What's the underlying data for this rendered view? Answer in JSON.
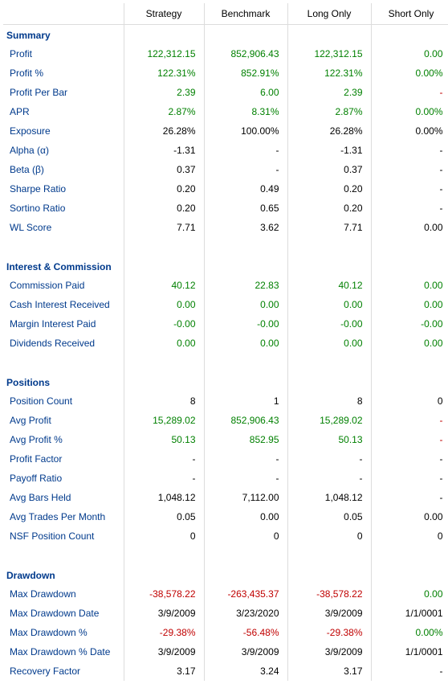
{
  "columns": [
    "",
    "Strategy",
    "Benchmark",
    "Long Only",
    "Short Only"
  ],
  "colors": {
    "header_label": "#003a8c",
    "positive": "#008000",
    "negative": "#c00000",
    "neutral": "#000000",
    "border": "#dcdcdc",
    "background": "#ffffff"
  },
  "sections": [
    {
      "title": "Summary",
      "rows": [
        {
          "label": "Profit",
          "cells": [
            {
              "v": "122,312.15",
              "c": "green"
            },
            {
              "v": "852,906.43",
              "c": "green"
            },
            {
              "v": "122,312.15",
              "c": "green"
            },
            {
              "v": "0.00",
              "c": "green"
            }
          ]
        },
        {
          "label": "Profit %",
          "cells": [
            {
              "v": "122.31%",
              "c": "green"
            },
            {
              "v": "852.91%",
              "c": "green"
            },
            {
              "v": "122.31%",
              "c": "green"
            },
            {
              "v": "0.00%",
              "c": "green"
            }
          ]
        },
        {
          "label": "Profit Per Bar",
          "cells": [
            {
              "v": "2.39",
              "c": "green"
            },
            {
              "v": "6.00",
              "c": "green"
            },
            {
              "v": "2.39",
              "c": "green"
            },
            {
              "v": "-",
              "c": "red"
            }
          ]
        },
        {
          "label": "APR",
          "cells": [
            {
              "v": "2.87%",
              "c": "green"
            },
            {
              "v": "8.31%",
              "c": "green"
            },
            {
              "v": "2.87%",
              "c": "green"
            },
            {
              "v": "0.00%",
              "c": "green"
            }
          ]
        },
        {
          "label": "Exposure",
          "cells": [
            {
              "v": "26.28%",
              "c": "black"
            },
            {
              "v": "100.00%",
              "c": "black"
            },
            {
              "v": "26.28%",
              "c": "black"
            },
            {
              "v": "0.00%",
              "c": "black"
            }
          ]
        },
        {
          "label": "Alpha (α)",
          "cells": [
            {
              "v": "-1.31",
              "c": "black"
            },
            {
              "v": "-",
              "c": "black"
            },
            {
              "v": "-1.31",
              "c": "black"
            },
            {
              "v": "-",
              "c": "black"
            }
          ]
        },
        {
          "label": "Beta (β)",
          "cells": [
            {
              "v": "0.37",
              "c": "black"
            },
            {
              "v": "-",
              "c": "black"
            },
            {
              "v": "0.37",
              "c": "black"
            },
            {
              "v": "-",
              "c": "black"
            }
          ]
        },
        {
          "label": "Sharpe Ratio",
          "cells": [
            {
              "v": "0.20",
              "c": "black"
            },
            {
              "v": "0.49",
              "c": "black"
            },
            {
              "v": "0.20",
              "c": "black"
            },
            {
              "v": "-",
              "c": "black"
            }
          ]
        },
        {
          "label": "Sortino Ratio",
          "cells": [
            {
              "v": "0.20",
              "c": "black"
            },
            {
              "v": "0.65",
              "c": "black"
            },
            {
              "v": "0.20",
              "c": "black"
            },
            {
              "v": "-",
              "c": "black"
            }
          ]
        },
        {
          "label": "WL Score",
          "cells": [
            {
              "v": "7.71",
              "c": "black"
            },
            {
              "v": "3.62",
              "c": "black"
            },
            {
              "v": "7.71",
              "c": "black"
            },
            {
              "v": "0.00",
              "c": "black"
            }
          ]
        }
      ]
    },
    {
      "title": "Interest & Commission",
      "rows": [
        {
          "label": "Commission Paid",
          "cells": [
            {
              "v": "40.12",
              "c": "green"
            },
            {
              "v": "22.83",
              "c": "green"
            },
            {
              "v": "40.12",
              "c": "green"
            },
            {
              "v": "0.00",
              "c": "green"
            }
          ]
        },
        {
          "label": "Cash Interest Received",
          "cells": [
            {
              "v": "0.00",
              "c": "green"
            },
            {
              "v": "0.00",
              "c": "green"
            },
            {
              "v": "0.00",
              "c": "green"
            },
            {
              "v": "0.00",
              "c": "green"
            }
          ]
        },
        {
          "label": "Margin Interest Paid",
          "cells": [
            {
              "v": "-0.00",
              "c": "green"
            },
            {
              "v": "-0.00",
              "c": "green"
            },
            {
              "v": "-0.00",
              "c": "green"
            },
            {
              "v": "-0.00",
              "c": "green"
            }
          ]
        },
        {
          "label": "Dividends Received",
          "cells": [
            {
              "v": "0.00",
              "c": "green"
            },
            {
              "v": "0.00",
              "c": "green"
            },
            {
              "v": "0.00",
              "c": "green"
            },
            {
              "v": "0.00",
              "c": "green"
            }
          ]
        }
      ]
    },
    {
      "title": "Positions",
      "rows": [
        {
          "label": "Position Count",
          "cells": [
            {
              "v": "8",
              "c": "black"
            },
            {
              "v": "1",
              "c": "black"
            },
            {
              "v": "8",
              "c": "black"
            },
            {
              "v": "0",
              "c": "black"
            }
          ]
        },
        {
          "label": "Avg Profit",
          "cells": [
            {
              "v": "15,289.02",
              "c": "green"
            },
            {
              "v": "852,906.43",
              "c": "green"
            },
            {
              "v": "15,289.02",
              "c": "green"
            },
            {
              "v": "-",
              "c": "red"
            }
          ]
        },
        {
          "label": "Avg Profit %",
          "cells": [
            {
              "v": "50.13",
              "c": "green"
            },
            {
              "v": "852.95",
              "c": "green"
            },
            {
              "v": "50.13",
              "c": "green"
            },
            {
              "v": "-",
              "c": "red"
            }
          ]
        },
        {
          "label": "Profit Factor",
          "cells": [
            {
              "v": "-",
              "c": "black"
            },
            {
              "v": "-",
              "c": "black"
            },
            {
              "v": "-",
              "c": "black"
            },
            {
              "v": "-",
              "c": "black"
            }
          ]
        },
        {
          "label": "Payoff Ratio",
          "cells": [
            {
              "v": "-",
              "c": "black"
            },
            {
              "v": "-",
              "c": "black"
            },
            {
              "v": "-",
              "c": "black"
            },
            {
              "v": "-",
              "c": "black"
            }
          ]
        },
        {
          "label": "Avg Bars Held",
          "cells": [
            {
              "v": "1,048.12",
              "c": "black"
            },
            {
              "v": "7,112.00",
              "c": "black"
            },
            {
              "v": "1,048.12",
              "c": "black"
            },
            {
              "v": "-",
              "c": "black"
            }
          ]
        },
        {
          "label": "Avg Trades Per Month",
          "cells": [
            {
              "v": "0.05",
              "c": "black"
            },
            {
              "v": "0.00",
              "c": "black"
            },
            {
              "v": "0.05",
              "c": "black"
            },
            {
              "v": "0.00",
              "c": "black"
            }
          ]
        },
        {
          "label": "NSF Position Count",
          "cells": [
            {
              "v": "0",
              "c": "black"
            },
            {
              "v": "0",
              "c": "black"
            },
            {
              "v": "0",
              "c": "black"
            },
            {
              "v": "0",
              "c": "black"
            }
          ]
        }
      ]
    },
    {
      "title": "Drawdown",
      "rows": [
        {
          "label": "Max Drawdown",
          "cells": [
            {
              "v": "-38,578.22",
              "c": "red"
            },
            {
              "v": "-263,435.37",
              "c": "red"
            },
            {
              "v": "-38,578.22",
              "c": "red"
            },
            {
              "v": "0.00",
              "c": "green"
            }
          ]
        },
        {
          "label": "Max Drawdown Date",
          "cells": [
            {
              "v": "3/9/2009",
              "c": "black"
            },
            {
              "v": "3/23/2020",
              "c": "black"
            },
            {
              "v": "3/9/2009",
              "c": "black"
            },
            {
              "v": "1/1/0001",
              "c": "black"
            }
          ]
        },
        {
          "label": "Max Drawdown %",
          "cells": [
            {
              "v": "-29.38%",
              "c": "red"
            },
            {
              "v": "-56.48%",
              "c": "red"
            },
            {
              "v": "-29.38%",
              "c": "red"
            },
            {
              "v": "0.00%",
              "c": "green"
            }
          ]
        },
        {
          "label": "Max Drawdown % Date",
          "cells": [
            {
              "v": "3/9/2009",
              "c": "black"
            },
            {
              "v": "3/9/2009",
              "c": "black"
            },
            {
              "v": "3/9/2009",
              "c": "black"
            },
            {
              "v": "1/1/0001",
              "c": "black"
            }
          ]
        },
        {
          "label": "Recovery Factor",
          "cells": [
            {
              "v": "3.17",
              "c": "black"
            },
            {
              "v": "3.24",
              "c": "black"
            },
            {
              "v": "3.17",
              "c": "black"
            },
            {
              "v": "-",
              "c": "black"
            }
          ]
        }
      ]
    }
  ]
}
